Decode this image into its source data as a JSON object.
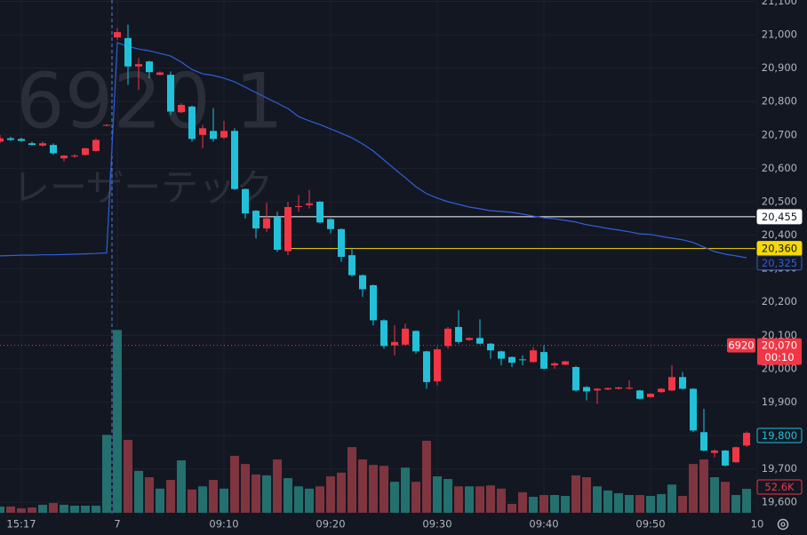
{
  "chart_data": {
    "type": "candlestick",
    "watermark_symbol": "6920 1",
    "watermark_name": "レーザーテック",
    "categories": [
      null,
      null,
      "15:17",
      null,
      null,
      null,
      null,
      null,
      null,
      null,
      null,
      "7",
      null,
      null,
      null,
      null,
      null,
      null,
      null,
      null,
      null,
      "09:10",
      null,
      null,
      null,
      null,
      null,
      null,
      null,
      null,
      null,
      "09:20",
      null,
      null,
      null,
      null,
      null,
      null,
      null,
      null,
      null,
      "09:30",
      null,
      null,
      null,
      null,
      null,
      null,
      null,
      null,
      null,
      "09:40",
      null,
      null,
      null,
      null,
      null,
      null,
      null,
      null,
      null,
      "09:50",
      null,
      null,
      null,
      null,
      null,
      null,
      null,
      null,
      null,
      "10"
    ],
    "open": [
      20680,
      20690,
      20688,
      20675,
      20668,
      20670,
      20630,
      20636,
      20640,
      20652,
      20728,
      20992,
      20990,
      20905,
      20920,
      20880,
      20880,
      20768,
      20785,
      20700,
      20712,
      20692,
      20712,
      20538,
      20473,
      20420,
      20455,
      20352,
      20484,
      20490,
      20500,
      20448,
      20418,
      20340,
      20280,
      20250,
      20145,
      20070,
      20072,
      20113,
      20052,
      19962,
      20068,
      20125,
      20086,
      20092,
      20075,
      20052,
      20035,
      20028,
      20020,
      20050,
      20010,
      20012,
      20005,
      19945,
      19935,
      19938,
      19940,
      19940,
      19935,
      19915,
      19930,
      19935,
      19975,
      19940,
      19810,
      19748,
      19755,
      19720,
      19770,
      null
    ],
    "high": [
      20700,
      20695,
      20692,
      20680,
      20680,
      20675,
      20640,
      20642,
      20662,
      20690,
      20732,
      21020,
      21030,
      20930,
      20922,
      20890,
      20890,
      20795,
      20788,
      20730,
      20780,
      20742,
      20720,
      20540,
      20475,
      20497,
      20470,
      20500,
      20520,
      20535,
      20502,
      20450,
      20420,
      20362,
      20282,
      20252,
      20148,
      20130,
      20135,
      20115,
      20054,
      20065,
      20125,
      20175,
      20094,
      20148,
      20077,
      20054,
      20037,
      20040,
      20065,
      20070,
      20020,
      20024,
      20008,
      19948,
      19942,
      19944,
      19946,
      19965,
      19937,
      19927,
      19942,
      20010,
      19990,
      19942,
      19880,
      19758,
      19757,
      19767,
      19812,
      null
    ],
    "low": [
      20675,
      20682,
      20680,
      20668,
      20665,
      20640,
      20620,
      20632,
      20638,
      20650,
      20726,
      20985,
      20850,
      20835,
      20870,
      20878,
      20760,
      20765,
      20680,
      20660,
      20680,
      20688,
      20535,
      20450,
      20390,
      20410,
      20350,
      20340,
      20470,
      20480,
      20435,
      20405,
      20320,
      20275,
      20215,
      20130,
      20060,
      20040,
      20070,
      20045,
      19940,
      19950,
      20060,
      20075,
      20084,
      20073,
      20030,
      20010,
      20005,
      20010,
      20018,
      19998,
      20000,
      20010,
      19932,
      19905,
      19895,
      19936,
      19938,
      19938,
      19908,
      19913,
      19928,
      19933,
      19938,
      19810,
      19752,
      19735,
      19708,
      19718,
      19766,
      null
    ],
    "close": [
      20690,
      20685,
      20682,
      20670,
      20675,
      20645,
      20638,
      20638,
      20660,
      20685,
      20730,
      21008,
      20905,
      20912,
      20888,
      20887,
      20770,
      20790,
      20688,
      20720,
      20688,
      20712,
      20538,
      20465,
      20420,
      20450,
      20356,
      20484,
      20487,
      20495,
      20438,
      20418,
      20335,
      20280,
      20238,
      20145,
      20068,
      20080,
      20120,
      20052,
      19960,
      20058,
      20120,
      20080,
      20092,
      20075,
      20055,
      20030,
      20018,
      20026,
      20055,
      20000,
      20016,
      20022,
      19935,
      19932,
      19940,
      19942,
      19944,
      19943,
      19910,
      19925,
      19940,
      19975,
      19940,
      19815,
      19755,
      19755,
      19710,
      19765,
      19808,
      null
    ],
    "up_color": "#f23645",
    "down_color": "#22c1d9",
    "volume": {
      "values": [
        13.7,
        13.7,
        9.8,
        11.7,
        17.5,
        21.4,
        17.5,
        15.6,
        15.6,
        15.6,
        171,
        401,
        160,
        92,
        78,
        53,
        72,
        115,
        51,
        58,
        72,
        53,
        125,
        107,
        84,
        82,
        117,
        76,
        58,
        53,
        58,
        80,
        88,
        144,
        117,
        105,
        103,
        68,
        99,
        68,
        158,
        80,
        74,
        58,
        58,
        58,
        60,
        53,
        19.5,
        45,
        35,
        39,
        39,
        37,
        82,
        78,
        58,
        49,
        43,
        39,
        39,
        37,
        41,
        62,
        37,
        107,
        117,
        78,
        68,
        39,
        52.6,
        null
      ],
      "up_color": "#24706e",
      "down_color": "#7e3540",
      "last_label": "52.6K"
    },
    "ma": {
      "color": "#2f5fd8",
      "values": [
        20338,
        20339,
        20340,
        20340,
        20341,
        20341,
        20342,
        20343,
        20344,
        20345,
        20347,
        20976,
        20965,
        20957,
        20952,
        20944,
        20936,
        20918,
        20896,
        20883,
        20878,
        20870,
        20859,
        20843,
        20827,
        20811,
        20795,
        20779,
        20755,
        20742,
        20731,
        20718,
        20705,
        20691,
        20673,
        20652,
        20625,
        20598,
        20572,
        20545,
        20524,
        20511,
        20500,
        20492,
        20484,
        20479,
        20473,
        20471,
        20468,
        20463,
        20457,
        20452,
        20449,
        20444,
        20439,
        20431,
        20426,
        20420,
        20415,
        20410,
        20404,
        20402,
        20396,
        20391,
        20386,
        20378,
        20364,
        20351,
        20343,
        20338,
        20332,
        null
      ],
      "value": 20325,
      "label": "20,325"
    },
    "ylim": [
      19566,
      21104
    ],
    "yticks": [
      {
        "value": 19600,
        "label": "19,600"
      },
      {
        "value": 19700,
        "label": "19,700"
      },
      {
        "value": 19800,
        "label": "19,800"
      },
      {
        "value": 19900,
        "label": "19,900"
      },
      {
        "value": 20000,
        "label": "20,000"
      },
      {
        "value": 20100,
        "label": "20,100"
      },
      {
        "value": 20200,
        "label": "20,200"
      },
      {
        "value": 20300,
        "label": "20,300"
      },
      {
        "value": 20400,
        "label": "20,400"
      },
      {
        "value": 20500,
        "label": "20,500"
      },
      {
        "value": 20600,
        "label": "20,600"
      },
      {
        "value": 20700,
        "label": "20,700"
      },
      {
        "value": 20800,
        "label": "20,800"
      },
      {
        "value": 20900,
        "label": "20,900"
      },
      {
        "value": 21000,
        "label": "21,000"
      },
      {
        "value": 21100,
        "label": "21,100"
      }
    ],
    "hlines": [
      {
        "value": 20455,
        "label": "20,455",
        "color": "#ffffff"
      },
      {
        "value": 20360,
        "label": "20,360",
        "color": "#f5d90a"
      }
    ],
    "reference": {
      "symbol": "6920",
      "value": 20070,
      "label": "20,070",
      "countdown": "00:10",
      "color": "#f23645"
    },
    "last": {
      "value": 19800,
      "label": "19,800",
      "color": "#22c1d9"
    },
    "grid": true
  }
}
